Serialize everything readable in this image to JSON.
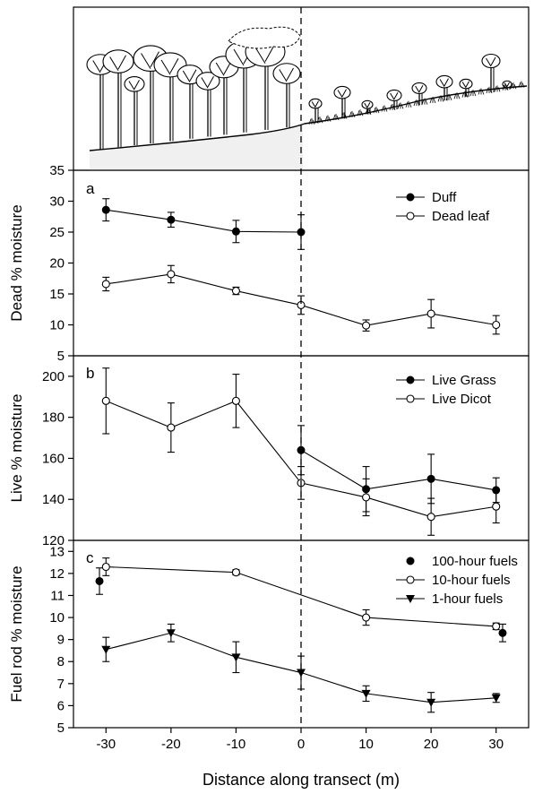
{
  "chart_data": {
    "type": "line",
    "xlabel": "Distance along transect (m)",
    "x_ticks": [
      "-30",
      "-20",
      "-10",
      "0",
      "10",
      "20",
      "30"
    ],
    "xlim": [
      -35,
      35
    ],
    "vertical_reference_line_x": 0,
    "illustration": "tree-canopy-profile",
    "panels": [
      {
        "letter": "a",
        "ylabel": "Dead % moisture",
        "ylim": [
          5,
          35
        ],
        "y_ticks": [
          5,
          10,
          15,
          20,
          25,
          30,
          35
        ],
        "legend": [
          "Duff",
          "Dead leaf"
        ],
        "series": [
          {
            "name": "Duff",
            "marker": "filled-circle",
            "connected": true,
            "x": [
              -30,
              -20,
              -10,
              0
            ],
            "y": [
              28.6,
              27.0,
              25.1,
              25.0
            ],
            "err": [
              1.8,
              1.2,
              1.8,
              2.8
            ]
          },
          {
            "name": "Dead leaf",
            "marker": "open-circle",
            "connected": true,
            "x": [
              -30,
              -20,
              -10,
              0,
              10,
              20,
              30
            ],
            "y": [
              16.6,
              18.2,
              15.5,
              13.2,
              9.9,
              11.8,
              10.0
            ],
            "err": [
              1.1,
              1.4,
              0.6,
              1.5,
              0.9,
              2.3,
              1.5
            ]
          }
        ]
      },
      {
        "letter": "b",
        "ylabel": "Live % moisture",
        "ylim": [
          120,
          210
        ],
        "y_ticks": [
          120,
          140,
          160,
          180,
          200
        ],
        "legend": [
          "Live Grass",
          "Live Dicot"
        ],
        "series": [
          {
            "name": "Live Grass",
            "marker": "filled-circle",
            "connected": true,
            "x": [
              0,
              10,
              20,
              30
            ],
            "y": [
              164,
              145,
              150,
              144.5
            ],
            "err": [
              12,
              11,
              12,
              6
            ]
          },
          {
            "name": "Live Dicot",
            "marker": "open-circle",
            "connected": true,
            "x": [
              -30,
              -20,
              -10,
              0,
              10,
              20,
              30
            ],
            "y": [
              188,
              175,
              188,
              148,
              141,
              131.5,
              136.5
            ],
            "err": [
              16,
              12,
              13,
              8,
              9,
              9,
              8
            ]
          }
        ]
      },
      {
        "letter": "c",
        "ylabel": "Fuel rod % moisture",
        "ylim": [
          5,
          13.5
        ],
        "y_ticks": [
          5,
          6,
          7,
          8,
          9,
          10,
          11,
          12,
          13
        ],
        "legend": [
          "100-hour fuels",
          "10-hour fuels",
          "1-hour fuels"
        ],
        "series": [
          {
            "name": "100-hour fuels",
            "marker": "filled-circle",
            "connected": false,
            "x": [
              -31,
              31
            ],
            "y": [
              11.65,
              9.3
            ],
            "err": [
              0.6,
              0.4
            ]
          },
          {
            "name": "10-hour fuels",
            "marker": "open-circle",
            "connected": true,
            "x": [
              -30,
              -10,
              10,
              30
            ],
            "y": [
              12.3,
              12.05,
              10.0,
              9.6
            ],
            "err": [
              0.4,
              0.12,
              0.35,
              0.15
            ]
          },
          {
            "name": "1-hour fuels",
            "marker": "filled-triangle-down",
            "connected": true,
            "x": [
              -30,
              -20,
              -10,
              0,
              10,
              20,
              30
            ],
            "y": [
              8.55,
              9.3,
              8.2,
              7.5,
              6.55,
              6.15,
              6.35
            ],
            "err": [
              0.55,
              0.4,
              0.7,
              0.75,
              0.35,
              0.45,
              0.2
            ]
          }
        ]
      }
    ]
  }
}
